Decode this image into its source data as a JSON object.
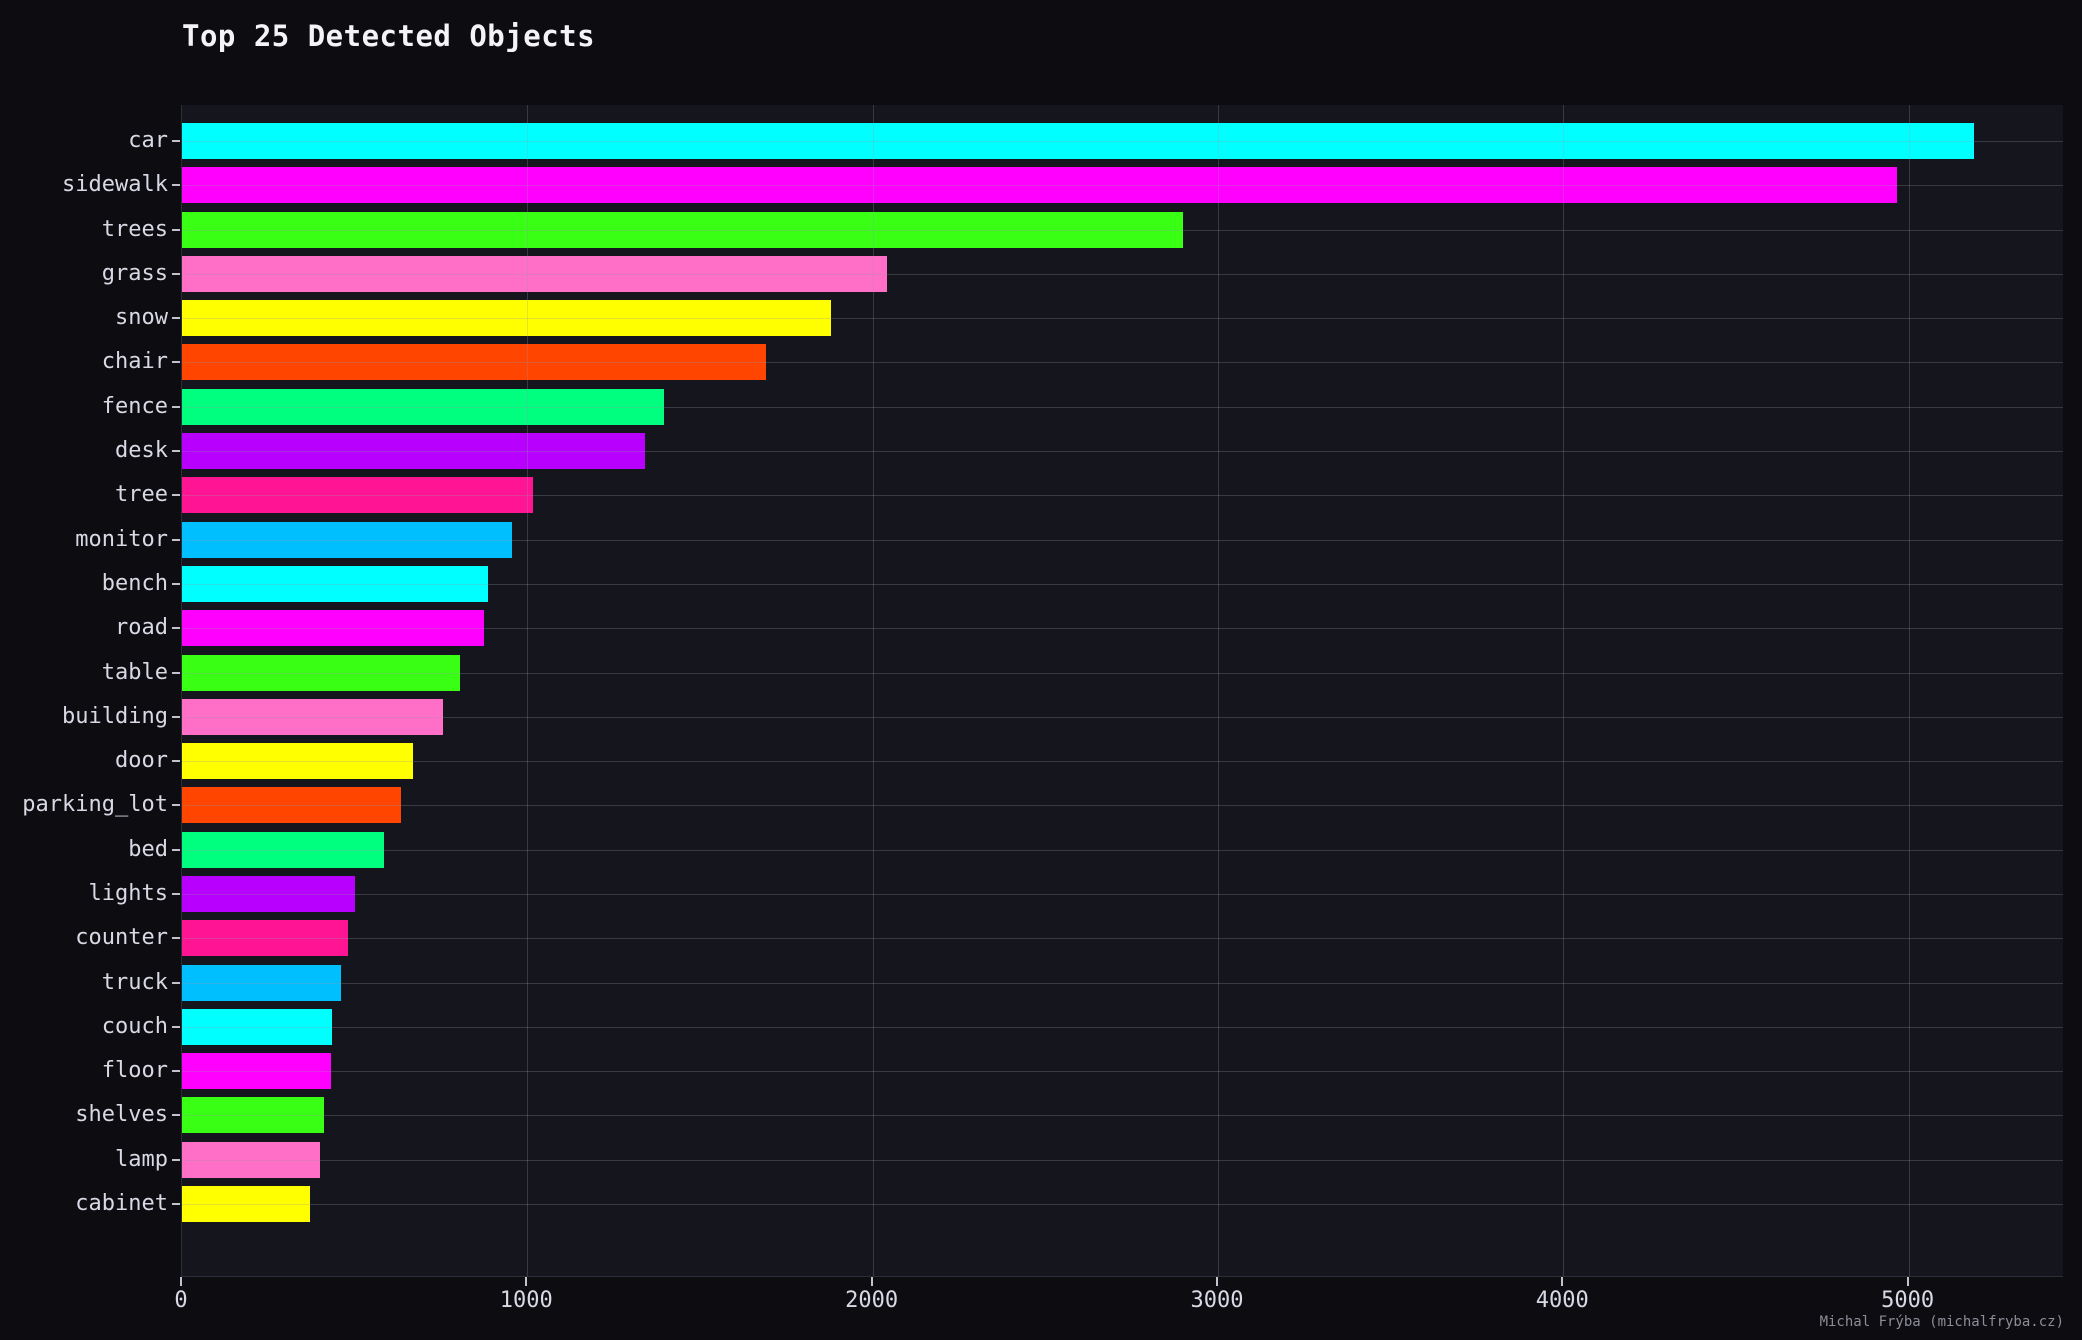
{
  "title": "Top 25 Detected Objects",
  "attribution": "Michal Frýba (michalfryba.cz)",
  "colors": {
    "page_background": "#0c0c11",
    "plot_background": "#15151d",
    "grid": "rgba(150,150,168,0.28)",
    "text": "#d9d9e5",
    "title_text": "#f4f4f7",
    "attribution_text": "#8d8d99",
    "palette_cycle": [
      "#00ffff",
      "#ff00ff",
      "#39ff14",
      "#ff6ec7",
      "#ffff00",
      "#ff4500",
      "#00ff7f",
      "#b800ff",
      "#ff1493",
      "#00bfff"
    ]
  },
  "chart_data": {
    "type": "bar",
    "orientation": "horizontal",
    "title": "Top 25 Detected Objects",
    "xlabel": "",
    "ylabel": "",
    "grid": true,
    "legend": "none",
    "xlim": [
      0,
      5450
    ],
    "x_ticks": [
      0,
      1000,
      2000,
      3000,
      4000,
      5000
    ],
    "categories": [
      "car",
      "sidewalk",
      "trees",
      "grass",
      "snow",
      "chair",
      "fence",
      "desk",
      "tree",
      "monitor",
      "bench",
      "road",
      "table",
      "building",
      "door",
      "parking_lot",
      "bed",
      "lights",
      "counter",
      "truck",
      "couch",
      "floor",
      "shelves",
      "lamp",
      "cabinet"
    ],
    "values": [
      5190,
      4965,
      2900,
      2040,
      1880,
      1690,
      1395,
      1340,
      1015,
      955,
      885,
      875,
      805,
      755,
      670,
      635,
      585,
      500,
      480,
      460,
      435,
      430,
      410,
      400,
      370
    ]
  }
}
